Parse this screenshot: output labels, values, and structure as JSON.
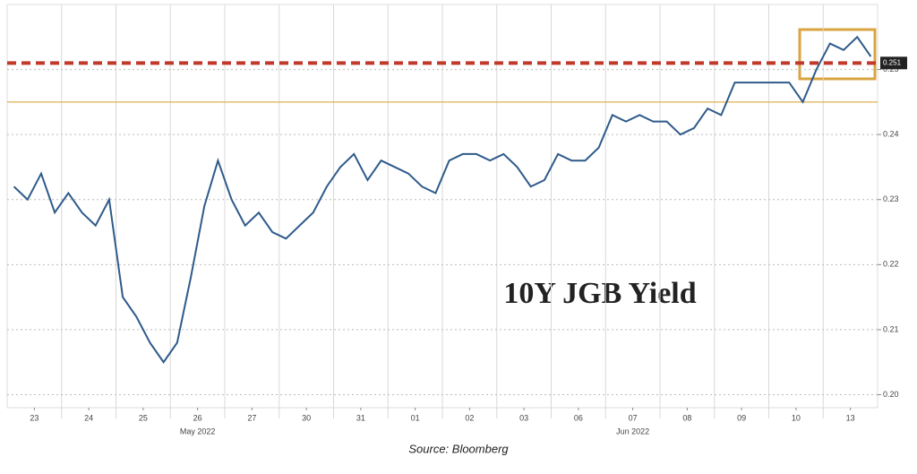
{
  "chart_data": {
    "type": "line",
    "title": "10Y JGB Yield",
    "source": "Source: Bloomberg",
    "month_labels": [
      {
        "value": 3.5,
        "label": "May 2022"
      },
      {
        "value": 11.5,
        "label": "Jun 2022"
      }
    ],
    "xlim": [
      0,
      16
    ],
    "xticks": [
      {
        "value": 0.5,
        "label": "23"
      },
      {
        "value": 1.5,
        "label": "24"
      },
      {
        "value": 2.5,
        "label": "25"
      },
      {
        "value": 3.5,
        "label": "26"
      },
      {
        "value": 4.5,
        "label": "27"
      },
      {
        "value": 5.5,
        "label": "30"
      },
      {
        "value": 6.5,
        "label": "31"
      },
      {
        "value": 7.5,
        "label": "01"
      },
      {
        "value": 8.5,
        "label": "02"
      },
      {
        "value": 9.5,
        "label": "03"
      },
      {
        "value": 10.5,
        "label": "06"
      },
      {
        "value": 11.5,
        "label": "07"
      },
      {
        "value": 12.5,
        "label": "08"
      },
      {
        "value": 13.5,
        "label": "09"
      },
      {
        "value": 14.5,
        "label": "10"
      },
      {
        "value": 15.5,
        "label": "13"
      }
    ],
    "ylim": [
      0.198,
      0.26
    ],
    "yticks": [
      {
        "value": 0.2,
        "label": "0.20"
      },
      {
        "value": 0.21,
        "label": "0.21"
      },
      {
        "value": 0.22,
        "label": "0.22"
      },
      {
        "value": 0.23,
        "label": "0.23"
      },
      {
        "value": 0.24,
        "label": "0.24"
      },
      {
        "value": 0.25,
        "label": "0.25"
      }
    ],
    "grid": true,
    "reference_lines": [
      {
        "value": 0.251,
        "label": "0.251",
        "color": "#c0392b"
      },
      {
        "value": 0.245,
        "color": "#e0b050"
      }
    ],
    "series": [
      {
        "color": "#2e5a8a",
        "x": [
          0.125,
          0.375,
          0.625,
          0.875,
          1.125,
          1.375,
          1.625,
          1.875,
          2.125,
          2.375,
          2.625,
          2.875,
          3.125,
          3.375,
          3.625,
          3.875,
          4.125,
          4.375,
          4.625,
          4.875,
          5.125,
          5.375,
          5.625,
          5.875,
          6.125,
          6.375,
          6.625,
          6.875,
          7.125,
          7.375,
          7.625,
          7.875,
          8.125,
          8.375,
          8.625,
          8.875,
          9.125,
          9.375,
          9.625,
          9.875,
          10.125,
          10.375,
          10.625,
          10.875,
          11.125,
          11.375,
          11.625,
          11.875,
          12.125,
          12.375,
          12.625,
          12.875,
          13.125,
          13.375,
          13.625,
          13.875,
          14.125,
          14.375,
          14.625,
          14.875,
          15.125,
          15.375,
          15.625,
          15.875
        ],
        "values": [
          0.232,
          0.23,
          0.234,
          0.228,
          0.231,
          0.228,
          0.226,
          0.23,
          0.215,
          0.212,
          0.208,
          0.205,
          0.208,
          0.218,
          0.229,
          0.236,
          0.23,
          0.226,
          0.228,
          0.225,
          0.224,
          0.226,
          0.228,
          0.232,
          0.235,
          0.237,
          0.233,
          0.236,
          0.235,
          0.234,
          0.232,
          0.231,
          0.236,
          0.237,
          0.237,
          0.236,
          0.237,
          0.235,
          0.232,
          0.233,
          0.237,
          0.236,
          0.236,
          0.238,
          0.243,
          0.242,
          0.243,
          0.242,
          0.242,
          0.24,
          0.241,
          0.244,
          0.243,
          0.248,
          0.248,
          0.248,
          0.248,
          0.248,
          0.245,
          0.25,
          0.254,
          0.253,
          0.255,
          0.252
        ]
      }
    ]
  }
}
